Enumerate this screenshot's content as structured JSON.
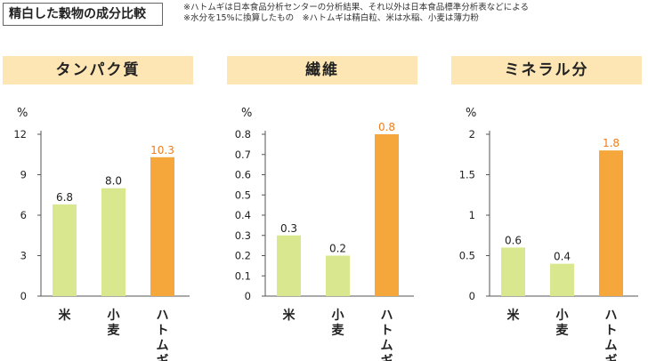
{
  "header": {
    "title": "精白した穀物の成分比較",
    "notes": [
      "※ハトムギは日本食品分析センターの分析結果、それ以外は日本食品標準分析表などによる",
      "※水分を15%に換算したもの　※ハトムギは精白粒、米は水稲、小麦は薄力粉"
    ]
  },
  "colors": {
    "bar_default": "#d9e88e",
    "bar_highlight": "#f5a73b",
    "label_default": "#222222",
    "label_highlight": "#ee7d1c",
    "header_bg": "#fde6b4"
  },
  "chart_data": [
    {
      "type": "bar",
      "title": "タンパク質",
      "unit": "%",
      "categories": [
        "米",
        "小麦",
        "ハトムギ"
      ],
      "values": [
        6.8,
        8.0,
        10.3
      ],
      "value_labels": [
        "6.8",
        "8.0",
        "10.3"
      ],
      "highlight_index": 2,
      "ylim": [
        0,
        12
      ],
      "yticks": [
        0,
        3,
        6,
        9,
        12
      ],
      "ytick_labels": [
        "0",
        "3",
        "6",
        "9",
        "12"
      ]
    },
    {
      "type": "bar",
      "title": "繊維",
      "unit": "%",
      "categories": [
        "米",
        "小麦",
        "ハトムギ"
      ],
      "values": [
        0.3,
        0.2,
        0.8
      ],
      "value_labels": [
        "0.3",
        "0.2",
        "0.8"
      ],
      "highlight_index": 2,
      "ylim": [
        0,
        0.8
      ],
      "yticks": [
        0,
        0.1,
        0.2,
        0.3,
        0.4,
        0.5,
        0.6,
        0.7,
        0.8
      ],
      "ytick_labels": [
        "0",
        "0.1",
        "0.2",
        "0.3",
        "0.4",
        "0.5",
        "0.6",
        "0.7",
        "0.8"
      ]
    },
    {
      "type": "bar",
      "title": "ミネラル分",
      "unit": "%",
      "categories": [
        "米",
        "小麦",
        "ハトムギ"
      ],
      "values": [
        0.6,
        0.4,
        1.8
      ],
      "value_labels": [
        "0.6",
        "0.4",
        "1.8"
      ],
      "highlight_index": 2,
      "ylim": [
        0,
        2
      ],
      "yticks": [
        0,
        0.5,
        1,
        1.5,
        2
      ],
      "ytick_labels": [
        "0",
        "0.5",
        "1",
        "1.5",
        "2"
      ]
    }
  ]
}
